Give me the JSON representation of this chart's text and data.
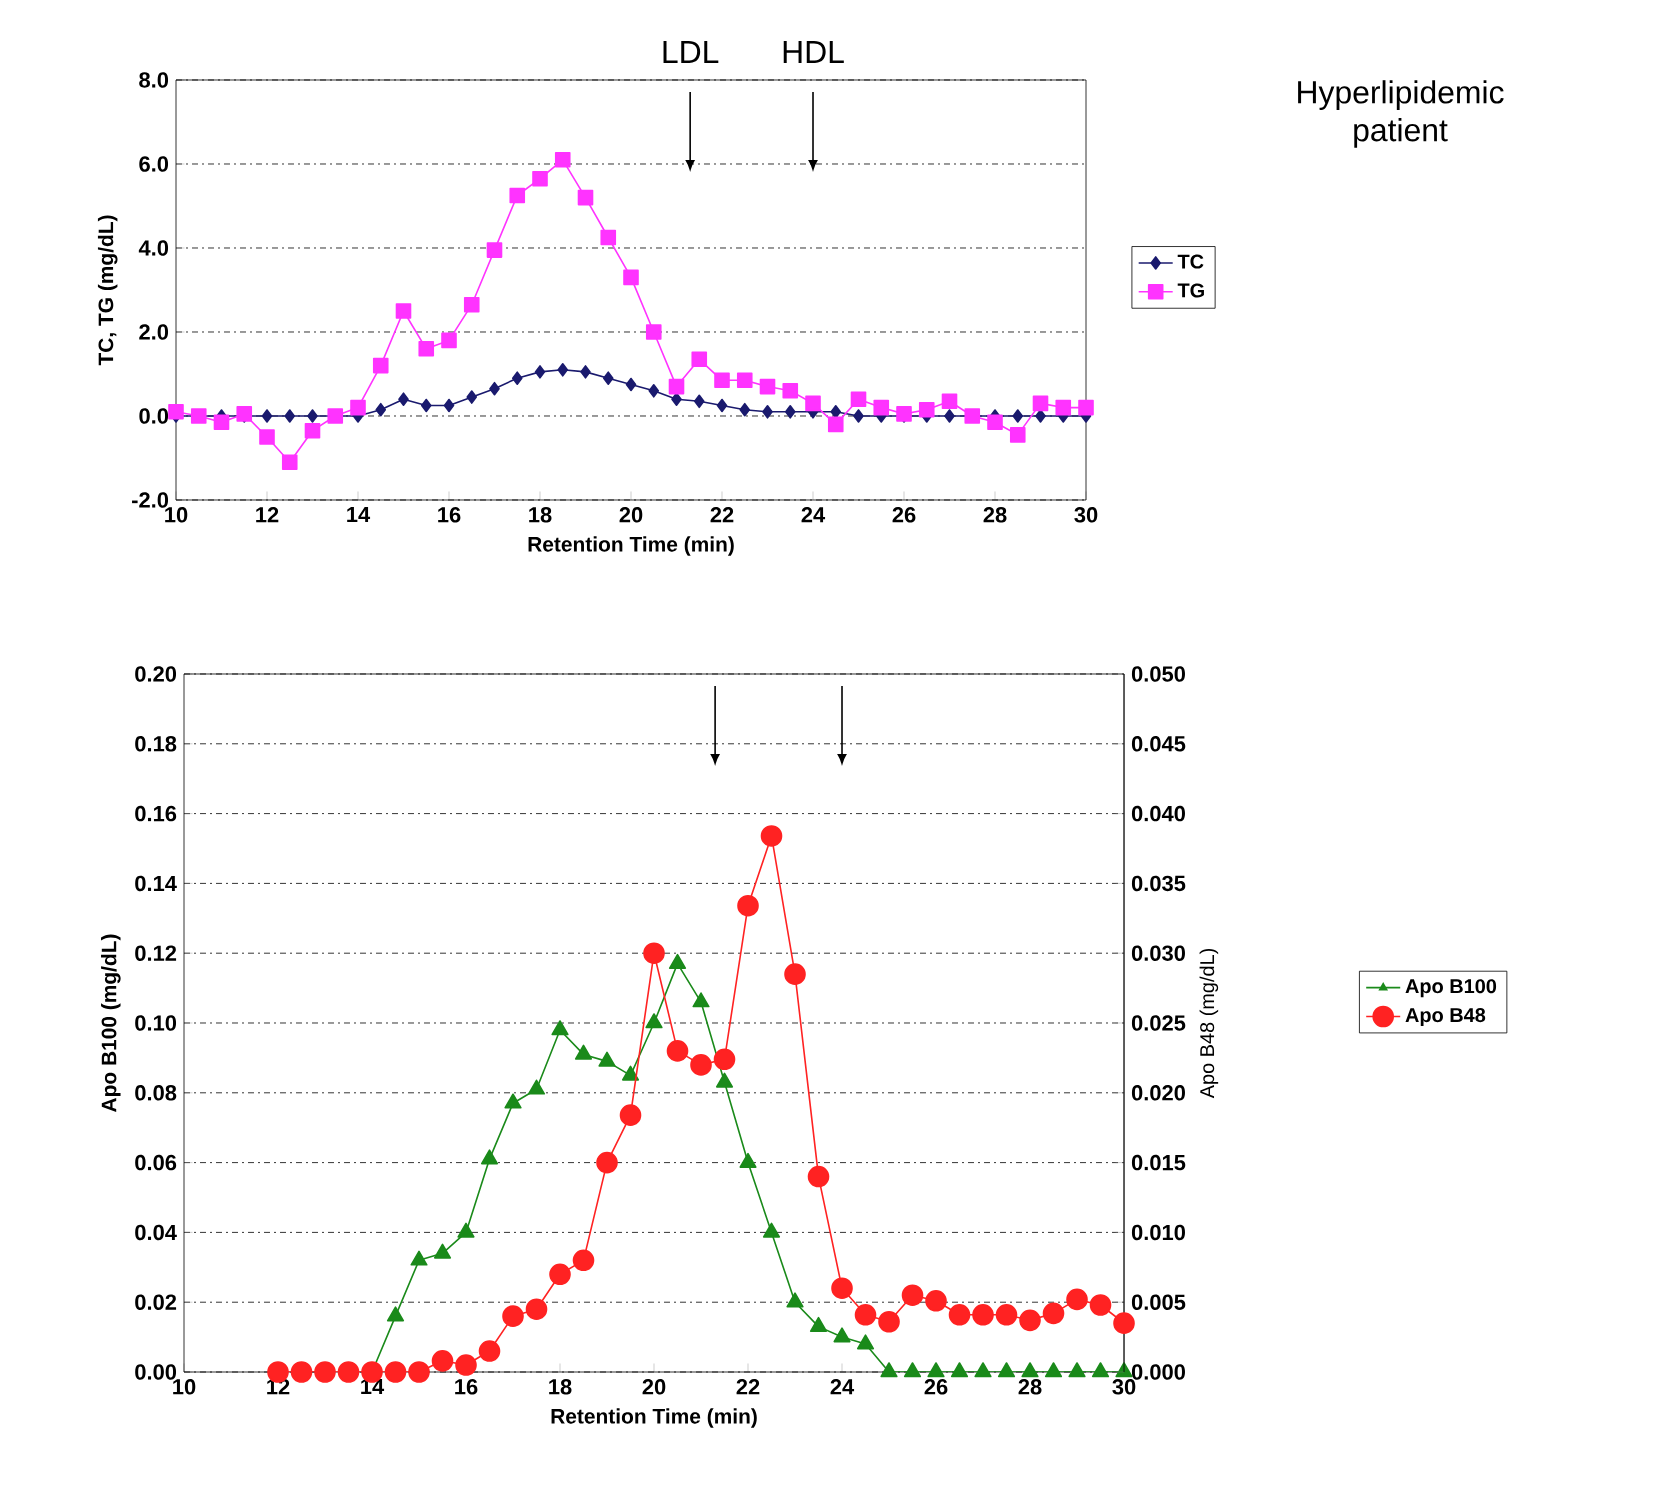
{
  "chart_data": [
    {
      "type": "line",
      "xlabel": "Retention Time (min)",
      "ylabel": "TC, TG (mg/dL)",
      "xlim": [
        10,
        30
      ],
      "xticks": [
        10,
        12,
        14,
        16,
        18,
        20,
        22,
        24,
        26,
        28,
        30
      ],
      "ylim": [
        -2,
        8
      ],
      "yticks": [
        {
          "value": -2,
          "label": "-2.0"
        },
        {
          "value": 0,
          "label": "0.0"
        },
        {
          "value": 2,
          "label": "2.0"
        },
        {
          "value": 4,
          "label": "4.0"
        },
        {
          "value": 6,
          "label": "6.0"
        },
        {
          "value": 8,
          "label": "8.0"
        }
      ],
      "grid": "y",
      "legend": "right",
      "ref_lines": [
        {
          "axis": "x",
          "value": 21.3,
          "label": "LDL"
        },
        {
          "axis": "x",
          "value": 24,
          "label": "HDL"
        }
      ],
      "series": [
        {
          "name": "TC",
          "color": "#1a1a6e",
          "marker": "diamond",
          "x": [
            10,
            10.5,
            11,
            11.5,
            12,
            12.5,
            13,
            13.5,
            14,
            14.5,
            15,
            15.5,
            16,
            16.5,
            17,
            17.5,
            18,
            18.5,
            19,
            19.5,
            20,
            20.5,
            21,
            21.5,
            22,
            22.5,
            23,
            23.5,
            24,
            24.5,
            25,
            25.5,
            26,
            26.5,
            27,
            27.5,
            28,
            28.5,
            29,
            29.5,
            30
          ],
          "values": [
            0,
            0,
            0,
            0,
            0,
            0,
            0,
            0,
            0,
            0.15,
            0.4,
            0.25,
            0.25,
            0.45,
            0.65,
            0.9,
            1.05,
            1.1,
            1.05,
            0.9,
            0.75,
            0.6,
            0.4,
            0.35,
            0.25,
            0.15,
            0.1,
            0.1,
            0.1,
            0.1,
            0,
            0,
            0,
            0,
            0,
            0,
            0,
            0,
            0,
            0,
            0
          ]
        },
        {
          "name": "TG",
          "color": "#ff33ff",
          "marker": "square",
          "x": [
            10,
            10.5,
            11,
            11.5,
            12,
            12.5,
            13,
            13.5,
            14,
            14.5,
            15,
            15.5,
            16,
            16.5,
            17,
            17.5,
            18,
            18.5,
            19,
            19.5,
            20,
            20.5,
            21,
            21.5,
            22,
            22.5,
            23,
            23.5,
            24,
            24.5,
            25,
            25.5,
            26,
            26.5,
            27,
            27.5,
            28,
            28.5,
            29,
            29.5,
            30
          ],
          "values": [
            0.1,
            0,
            -0.15,
            0.05,
            -0.5,
            -1.1,
            -0.35,
            0,
            0.2,
            1.2,
            2.5,
            1.6,
            1.8,
            2.65,
            3.95,
            5.25,
            5.65,
            6.1,
            5.2,
            4.25,
            3.3,
            2.0,
            0.7,
            1.35,
            0.85,
            0.85,
            0.7,
            0.6,
            0.3,
            -0.2,
            0.4,
            0.2,
            0.05,
            0.15,
            0.35,
            0,
            -0.15,
            -0.45,
            0.3,
            0.2,
            0.2
          ]
        }
      ]
    },
    {
      "type": "line",
      "xlabel": "Retention Time (min)",
      "ylabel": "Apo B100 (mg/dL)",
      "y2label": "Apo B48 (mg/dL)",
      "xlim": [
        10,
        30
      ],
      "xticks": [
        10,
        12,
        14,
        16,
        18,
        20,
        22,
        24,
        26,
        28,
        30
      ],
      "ylim": [
        0,
        0.2
      ],
      "yticks": [
        {
          "value": 0,
          "label": "0.00"
        },
        {
          "value": 0.02,
          "label": "0.02"
        },
        {
          "value": 0.04,
          "label": "0.04"
        },
        {
          "value": 0.06,
          "label": "0.06"
        },
        {
          "value": 0.08,
          "label": "0.08"
        },
        {
          "value": 0.1,
          "label": "0.10"
        },
        {
          "value": 0.12,
          "label": "0.12"
        },
        {
          "value": 0.14,
          "label": "0.14"
        },
        {
          "value": 0.16,
          "label": "0.16"
        },
        {
          "value": 0.18,
          "label": "0.18"
        },
        {
          "value": 0.2,
          "label": "0.20"
        }
      ],
      "y2lim": [
        0,
        0.05
      ],
      "ref_lines": [
        {
          "axis": "x",
          "value": 21.3
        },
        {
          "axis": "x",
          "value": 24
        }
      ],
      "y2ticks": [
        {
          "value": 0,
          "label": "0.000"
        },
        {
          "value": 0.005,
          "label": "0.005"
        },
        {
          "value": 0.01,
          "label": "0.010"
        },
        {
          "value": 0.015,
          "label": "0.015"
        },
        {
          "value": 0.02,
          "label": "0.020"
        },
        {
          "value": 0.025,
          "label": "0.025"
        },
        {
          "value": 0.03,
          "label": "0.030"
        },
        {
          "value": 0.035,
          "label": "0.035"
        },
        {
          "value": 0.04,
          "label": "0.040"
        },
        {
          "value": 0.045,
          "label": "0.045"
        },
        {
          "value": 0.05,
          "label": "0.050"
        }
      ],
      "grid": "y",
      "legend": "right",
      "series": [
        {
          "name": "Apo B100",
          "color": "#1a8a1a",
          "marker": "triangle",
          "x": [
            14,
            14.5,
            15,
            15.5,
            16,
            16.5,
            17,
            17.5,
            18,
            18.5,
            19,
            19.5,
            20,
            20.5,
            21,
            21.5,
            22,
            22.5,
            23,
            23.5,
            24,
            24.5,
            25,
            25.5,
            26,
            26.5,
            27,
            27.5,
            28,
            28.5,
            29,
            29.5,
            30
          ],
          "values": [
            0,
            0.016,
            0.032,
            0.034,
            0.04,
            0.061,
            0.077,
            0.081,
            0.098,
            0.091,
            0.089,
            0.085,
            0.1,
            0.117,
            0.106,
            0.083,
            0.06,
            0.04,
            0.02,
            0.013,
            0.01,
            0.008,
            0,
            0,
            0,
            0,
            0,
            0,
            0,
            0,
            0,
            0,
            0
          ]
        },
        {
          "name": "Apo B48",
          "color": "#ff2222",
          "marker": "circle",
          "axis": "y2",
          "x": [
            12,
            12.5,
            13,
            13.5,
            14,
            14.5,
            15,
            15.5,
            16,
            16.5,
            17,
            17.5,
            18,
            18.5,
            19,
            19.5,
            20,
            20.5,
            21,
            21.5,
            22,
            22.5,
            23,
            23.5,
            24,
            24.5,
            25,
            25.5,
            26,
            26.5,
            27,
            27.5,
            28,
            28.5,
            29,
            29.5,
            30
          ],
          "values": [
            0,
            0,
            0,
            0,
            0,
            0,
            0,
            0.0008,
            0.0005,
            0.0015,
            0.004,
            0.0045,
            0.007,
            0.008,
            0.015,
            0.0184,
            0.03,
            0.023,
            0.022,
            0.0224,
            0.0334,
            0.0384,
            0.0285,
            0.014,
            0.006,
            0.0041,
            0.0036,
            0.0055,
            0.0051,
            0.0041,
            0.0041,
            0.0041,
            0.0037,
            0.0042,
            0.0052,
            0.0048,
            0.0035
          ]
        }
      ]
    },
    {
      "type": "other",
      "title": "Hyperlipidemic patient"
    }
  ]
}
